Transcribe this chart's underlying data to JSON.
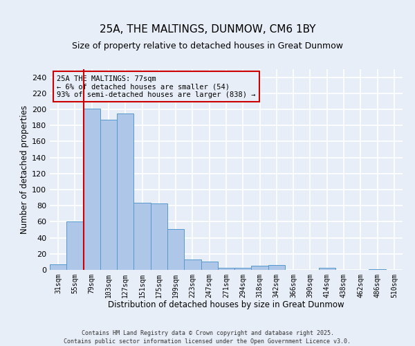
{
  "title": "25A, THE MALTINGS, DUNMOW, CM6 1BY",
  "subtitle": "Size of property relative to detached houses in Great Dunmow",
  "xlabel": "Distribution of detached houses by size in Great Dunmow",
  "ylabel": "Number of detached properties",
  "bar_labels": [
    "31sqm",
    "55sqm",
    "79sqm",
    "103sqm",
    "127sqm",
    "151sqm",
    "175sqm",
    "199sqm",
    "223sqm",
    "247sqm",
    "271sqm",
    "294sqm",
    "318sqm",
    "342sqm",
    "366sqm",
    "390sqm",
    "414sqm",
    "438sqm",
    "462sqm",
    "486sqm",
    "510sqm"
  ],
  "bar_values": [
    7,
    60,
    201,
    187,
    195,
    84,
    83,
    51,
    13,
    10,
    3,
    3,
    5,
    6,
    0,
    0,
    3,
    0,
    0,
    1,
    0
  ],
  "bar_color": "#aec6e8",
  "bar_edge_color": "#5599cc",
  "vline_color": "#cc0000",
  "ylim": [
    0,
    250
  ],
  "yticks": [
    0,
    20,
    40,
    60,
    80,
    100,
    120,
    140,
    160,
    180,
    200,
    220,
    240
  ],
  "annotation_title": "25A THE MALTINGS: 77sqm",
  "annotation_line1": "← 6% of detached houses are smaller (54)",
  "annotation_line2": "93% of semi-detached houses are larger (838) →",
  "annotation_box_color": "#cc0000",
  "footer_line1": "Contains HM Land Registry data © Crown copyright and database right 2025.",
  "footer_line2": "Contains public sector information licensed under the Open Government Licence v3.0.",
  "bg_color": "#e8eef8",
  "grid_color": "#ffffff"
}
